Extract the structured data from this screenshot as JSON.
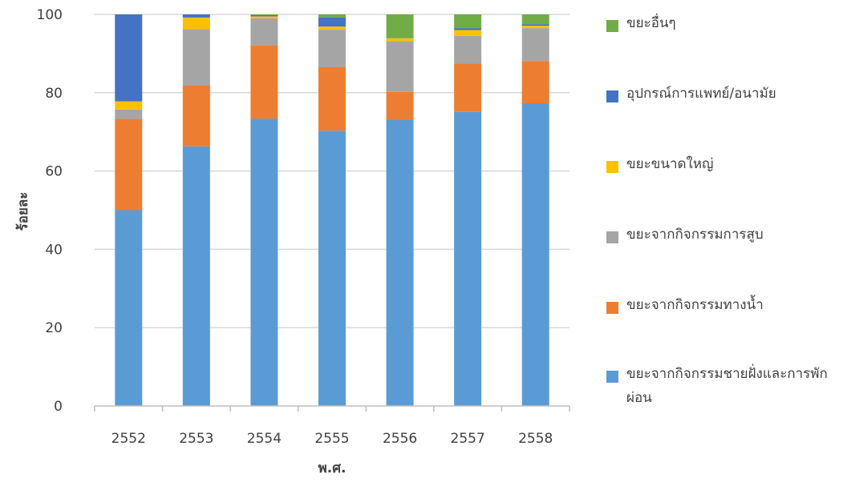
{
  "chart_data": {
    "type": "bar",
    "stacked": true,
    "xlabel": "พ.ศ.",
    "ylabel": "ร้อยละ",
    "ylim": [
      0,
      100
    ],
    "yticks": [
      0,
      20,
      40,
      60,
      80,
      100
    ],
    "grid": true,
    "legend_position": "right",
    "categories": [
      "2552",
      "2553",
      "2554",
      "2555",
      "2556",
      "2557",
      "2558"
    ],
    "series": [
      {
        "name": "ขยะจากกิจกรรมชายฝั่งและการพักผ่อน",
        "color": "#5b9bd5",
        "values": [
          50.0,
          66.3,
          73.4,
          70.3,
          73.2,
          75.1,
          77.3
        ]
      },
      {
        "name": "ขยะจากกิจกรรมทางน้ำ",
        "color": "#ed7d31",
        "values": [
          23.3,
          15.5,
          18.7,
          16.2,
          7.0,
          12.4,
          10.8
        ]
      },
      {
        "name": "ขยะจากกิจกรรมการสูบ",
        "color": "#a5a5a5",
        "values": [
          2.4,
          14.4,
          6.9,
          9.6,
          13.0,
          7.0,
          8.4
        ]
      },
      {
        "name": "ขยะขนาดใหญ่",
        "color": "#ffc000",
        "values": [
          2.1,
          3.0,
          0.5,
          0.8,
          0.7,
          1.5,
          0.6
        ]
      },
      {
        "name": "อุปกรณ์การแพทย์/อนามัย",
        "color": "#4472c4",
        "values": [
          22.2,
          0.8,
          0.3,
          2.3,
          0.0,
          0.5,
          0.4
        ]
      },
      {
        "name": "ขยะอื่นๆ",
        "color": "#70ad47",
        "values": [
          0.0,
          0.0,
          0.2,
          0.8,
          6.1,
          3.5,
          2.5
        ]
      }
    ]
  }
}
